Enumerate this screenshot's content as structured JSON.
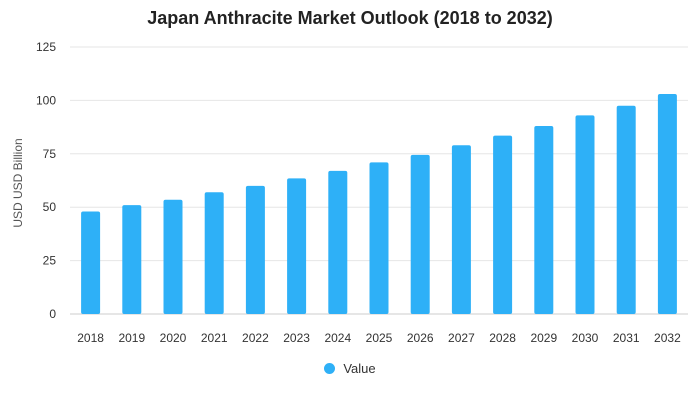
{
  "chart_data": {
    "type": "bar",
    "title": "Japan Anthracite Market Outlook (2018 to 2032)",
    "xlabel": "",
    "ylabel": "USD USD Billion",
    "categories": [
      "2018",
      "2019",
      "2020",
      "2021",
      "2022",
      "2023",
      "2024",
      "2025",
      "2026",
      "2027",
      "2028",
      "2029",
      "2030",
      "2031",
      "2032"
    ],
    "series": [
      {
        "name": "Value",
        "values": [
          48,
          51,
          53.5,
          57,
          60,
          63.5,
          67,
          71,
          74.5,
          79,
          83.5,
          88,
          93,
          97.5,
          103
        ]
      }
    ],
    "ylim": [
      0,
      125
    ],
    "yticks": [
      0,
      25,
      50,
      75,
      100,
      125
    ],
    "grid": true,
    "legend_position": "bottom-center",
    "colors": {
      "bar": "#2eb0f7",
      "grid": "#e6e6e6",
      "axis": "#cccccc",
      "tick_text": "#333333"
    }
  }
}
